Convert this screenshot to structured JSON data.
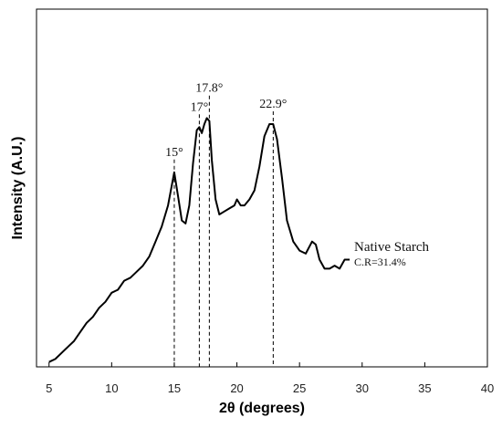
{
  "chart_data": {
    "type": "line",
    "xlabel": "2θ (degrees)",
    "ylabel": "Intensity (A.U.)",
    "xlim": [
      4,
      40
    ],
    "ylim": [
      0,
      1
    ],
    "xticks": [
      5,
      10,
      15,
      20,
      25,
      30,
      35,
      40
    ],
    "xtick_labels": [
      "5",
      "10",
      "15",
      "20",
      "25",
      "30",
      "35",
      "40"
    ],
    "y_tick_labels_shown": false,
    "grid": false,
    "series": [
      {
        "name": "Native Starch",
        "x": [
          5.0,
          5.5,
          6.0,
          6.5,
          7.0,
          7.5,
          8.0,
          8.5,
          9.0,
          9.5,
          10.0,
          10.5,
          11.0,
          11.5,
          12.0,
          12.5,
          13.0,
          13.5,
          14.0,
          14.5,
          15.0,
          15.3,
          15.6,
          15.9,
          16.2,
          16.5,
          16.8,
          17.0,
          17.2,
          17.4,
          17.6,
          17.8,
          18.0,
          18.3,
          18.6,
          19.0,
          19.4,
          19.8,
          20.0,
          20.3,
          20.6,
          21.0,
          21.4,
          21.8,
          22.2,
          22.6,
          22.9,
          23.2,
          23.6,
          24.0,
          24.5,
          25.0,
          25.5,
          26.0,
          26.3,
          26.6,
          27.0,
          27.4,
          27.8,
          28.2,
          28.6,
          29.0
        ],
        "y": [
          0.01,
          0.02,
          0.04,
          0.06,
          0.08,
          0.11,
          0.14,
          0.16,
          0.19,
          0.21,
          0.24,
          0.25,
          0.28,
          0.29,
          0.31,
          0.33,
          0.36,
          0.41,
          0.46,
          0.53,
          0.64,
          0.56,
          0.48,
          0.47,
          0.53,
          0.67,
          0.78,
          0.79,
          0.77,
          0.8,
          0.82,
          0.81,
          0.68,
          0.55,
          0.5,
          0.51,
          0.52,
          0.53,
          0.55,
          0.53,
          0.53,
          0.55,
          0.58,
          0.66,
          0.76,
          0.8,
          0.8,
          0.75,
          0.62,
          0.48,
          0.41,
          0.38,
          0.37,
          0.41,
          0.4,
          0.35,
          0.32,
          0.32,
          0.33,
          0.32,
          0.35,
          0.35
        ]
      }
    ],
    "peaks": [
      {
        "x": 15,
        "label": "15°"
      },
      {
        "x": 17,
        "label": "17°"
      },
      {
        "x": 17.8,
        "label": "17.8°"
      },
      {
        "x": 22.9,
        "label": "22.9°"
      }
    ],
    "series_label": "Native Starch",
    "annotation": "C.R=31.4%",
    "line_color": "#000000"
  }
}
